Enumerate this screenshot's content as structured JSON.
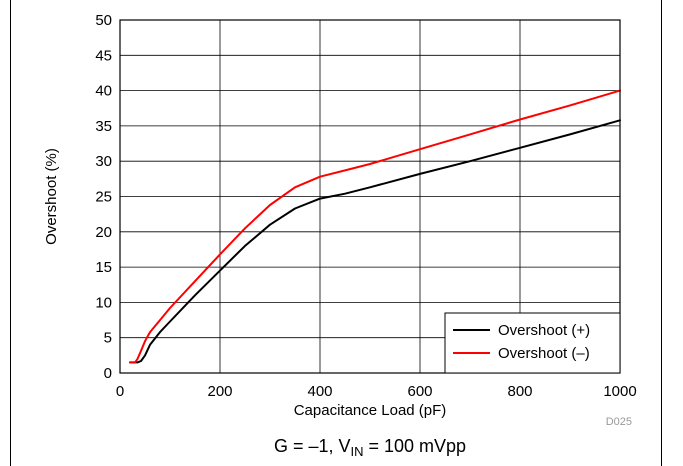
{
  "chart_data": {
    "type": "line",
    "xlabel": "Capacitance Load (pF)",
    "ylabel": "Overshoot (%)",
    "xlim": [
      0,
      1000
    ],
    "ylim": [
      0,
      50
    ],
    "xticks": [
      0,
      200,
      400,
      600,
      800,
      1000
    ],
    "yticks": [
      0,
      5,
      10,
      15,
      20,
      25,
      30,
      35,
      40,
      45,
      50
    ],
    "grid": true,
    "legend_position": "bottom-right",
    "series": [
      {
        "name": "Overshoot (+)",
        "color": "#000000",
        "x": [
          20,
          35,
          42,
          50,
          60,
          80,
          100,
          150,
          200,
          250,
          300,
          350,
          400,
          450,
          500,
          600,
          700,
          800,
          900,
          1000
        ],
        "y": [
          1.5,
          1.5,
          1.7,
          2.5,
          4.0,
          5.8,
          7.3,
          11.0,
          14.5,
          18.0,
          21.0,
          23.3,
          24.7,
          25.4,
          26.3,
          28.2,
          30.0,
          31.9,
          33.8,
          35.8
        ]
      },
      {
        "name": "Overshoot (–)",
        "color": "#ff0000",
        "x": [
          20,
          30,
          35,
          40,
          50,
          60,
          80,
          100,
          150,
          200,
          250,
          300,
          350,
          400,
          450,
          500,
          600,
          700,
          800,
          900,
          1000
        ],
        "y": [
          1.5,
          1.5,
          2.0,
          2.8,
          4.5,
          5.8,
          7.5,
          9.2,
          13.0,
          16.8,
          20.5,
          23.8,
          26.3,
          27.8,
          28.7,
          29.6,
          31.7,
          33.8,
          35.9,
          37.9,
          40.0
        ]
      }
    ]
  },
  "figure_id": "D025",
  "caption": {
    "prefix": "G = –1, V",
    "subscript": "IN",
    "suffix": " = 100 mVpp"
  }
}
